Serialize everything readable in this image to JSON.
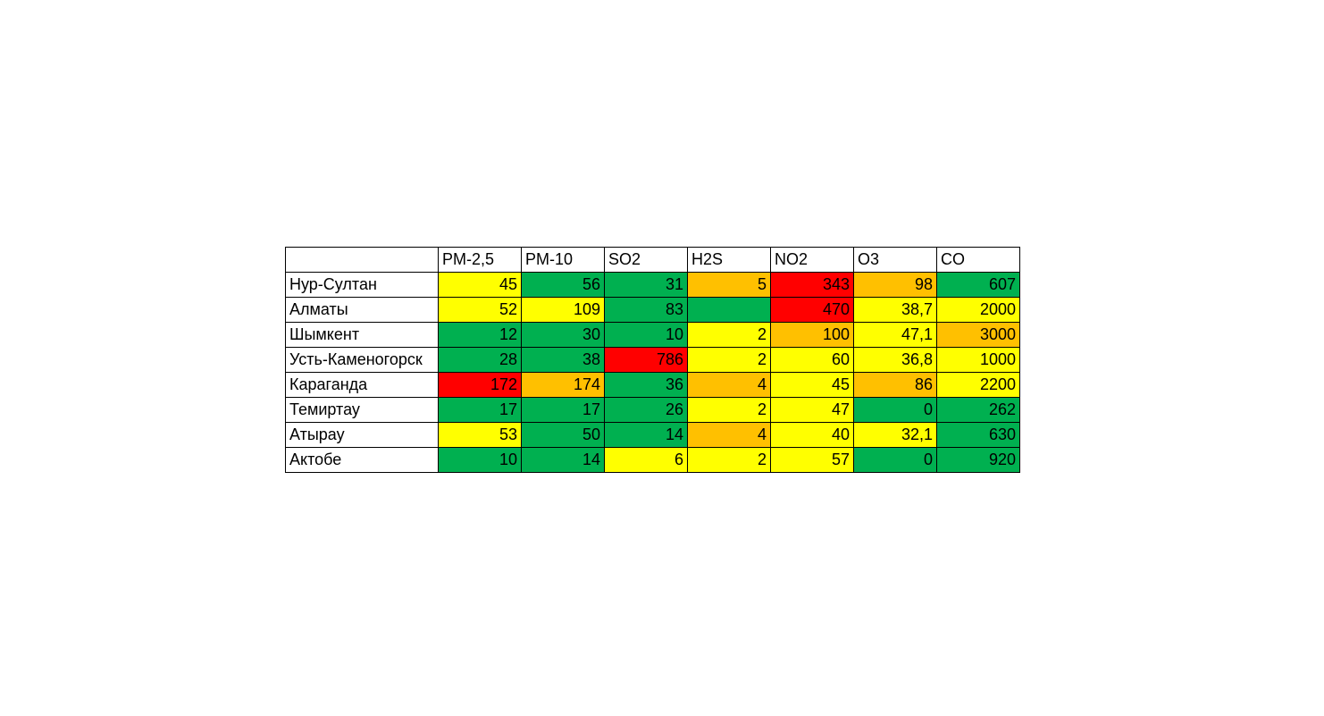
{
  "chart_data": {
    "type": "heatmap",
    "columns": [
      "PM-2,5",
      "PM-10",
      "SO2",
      "H2S",
      "NO2",
      "O3",
      "CO"
    ],
    "colors": {
      "green": "#00B050",
      "yellow": "#FFFF00",
      "orange": "#FFC000",
      "red": "#FF0000"
    },
    "rows": [
      {
        "city": "Нур-Султан",
        "values": [
          "45",
          "56",
          "31",
          "5",
          "343",
          "98",
          "607"
        ],
        "levels": [
          "yellow",
          "green",
          "green",
          "orange",
          "red",
          "orange",
          "green"
        ]
      },
      {
        "city": "Алматы",
        "values": [
          "52",
          "109",
          "83",
          "",
          "470",
          "38,7",
          "2000"
        ],
        "levels": [
          "yellow",
          "yellow",
          "green",
          "green",
          "red",
          "yellow",
          "yellow"
        ]
      },
      {
        "city": "Шымкент",
        "values": [
          "12",
          "30",
          "10",
          "2",
          "100",
          "47,1",
          "3000"
        ],
        "levels": [
          "green",
          "green",
          "green",
          "yellow",
          "orange",
          "yellow",
          "orange"
        ]
      },
      {
        "city": "Усть-Каменогорск",
        "values": [
          "28",
          "38",
          "786",
          "2",
          "60",
          "36,8",
          "1000"
        ],
        "levels": [
          "green",
          "green",
          "red",
          "yellow",
          "yellow",
          "yellow",
          "yellow"
        ]
      },
      {
        "city": "Караганда",
        "values": [
          "172",
          "174",
          "36",
          "4",
          "45",
          "86",
          "2200"
        ],
        "levels": [
          "red",
          "orange",
          "green",
          "orange",
          "yellow",
          "orange",
          "yellow"
        ]
      },
      {
        "city": "Темиртау",
        "values": [
          "17",
          "17",
          "26",
          "2",
          "47",
          "0",
          "262"
        ],
        "levels": [
          "green",
          "green",
          "green",
          "yellow",
          "yellow",
          "green",
          "green"
        ]
      },
      {
        "city": "Атырау",
        "values": [
          "53",
          "50",
          "14",
          "4",
          "40",
          "32,1",
          "630"
        ],
        "levels": [
          "yellow",
          "green",
          "green",
          "orange",
          "yellow",
          "yellow",
          "green"
        ]
      },
      {
        "city": "Актобе",
        "values": [
          "10",
          "14",
          "6",
          "2",
          "57",
          "0",
          "920"
        ],
        "levels": [
          "green",
          "green",
          "yellow",
          "yellow",
          "yellow",
          "green",
          "green"
        ]
      }
    ]
  }
}
